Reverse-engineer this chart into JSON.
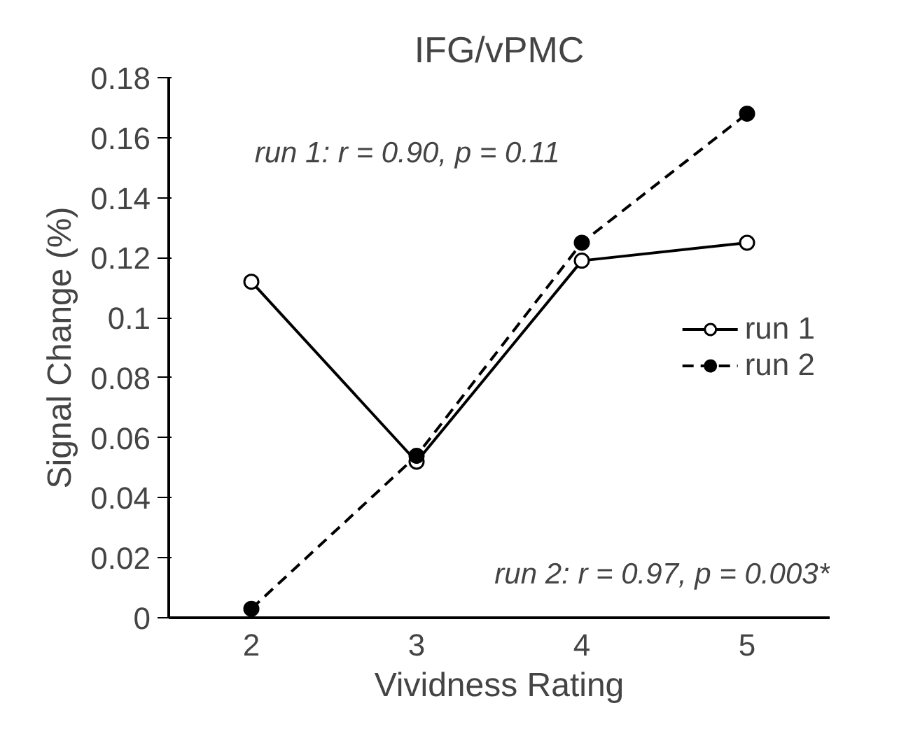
{
  "chart_data": {
    "type": "line",
    "title": "IFG/vPMC",
    "xlabel": "Vividness Rating",
    "ylabel": "Signal Change (%)",
    "categories": [
      "2",
      "3",
      "4",
      "5"
    ],
    "series": [
      {
        "name": "run 1",
        "color": "#000000",
        "values": [
          0.112,
          0.052,
          0.119,
          0.125
        ],
        "line_style": "solid",
        "marker": "circle"
      },
      {
        "name": "run 2",
        "color": "#000000",
        "values": [
          0.003,
          0.054,
          0.125,
          0.168
        ],
        "line_style": "dashed",
        "marker": "circle"
      }
    ],
    "ylim": [
      0,
      0.18
    ],
    "yticks": [
      0,
      0.02,
      0.04,
      0.06,
      0.08,
      0.1,
      0.12,
      0.14,
      0.16,
      0.18
    ],
    "annotations": [
      "run 1: r = 0.90, p = 0.11",
      "run 2: r = 0.97, p = 0.003*"
    ],
    "grid": false,
    "legend": "right"
  }
}
